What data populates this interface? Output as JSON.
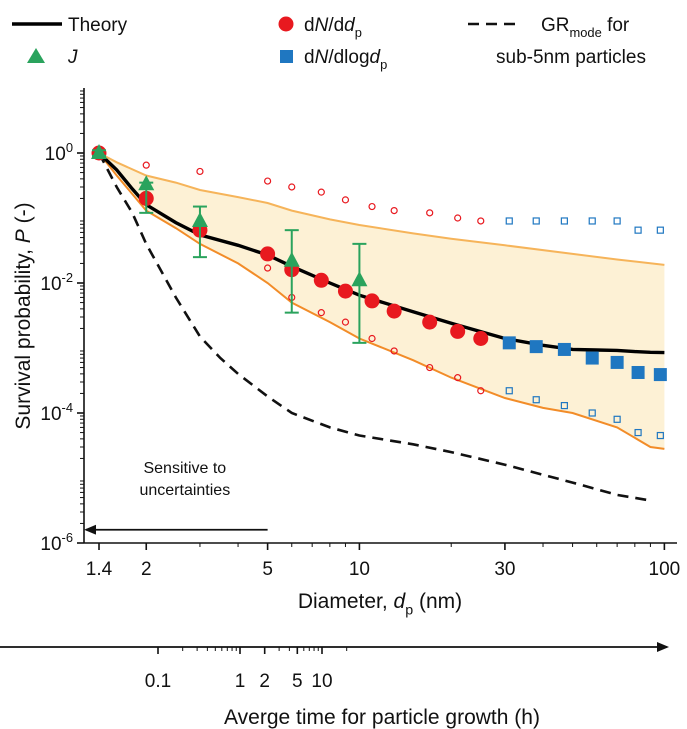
{
  "chart_data": {
    "type": "scatter",
    "x_scale": "log",
    "y_scale": "log",
    "xlim": [
      1.25,
      110
    ],
    "ylim": [
      1e-06,
      10
    ],
    "xlabel": {
      "prefix": "Diameter, ",
      "var": "d",
      "sub": "p",
      "suffix": " (nm)"
    },
    "ylabel": {
      "prefix": "Survival probability, ",
      "var": "P",
      "suffix": " (-)"
    },
    "x_ticks": [
      {
        "value": 1.4,
        "label": "1.4"
      },
      {
        "value": 2,
        "label": "2"
      },
      {
        "value": 5,
        "label": "5"
      },
      {
        "value": 10,
        "label": "10"
      },
      {
        "value": 30,
        "label": "30"
      },
      {
        "value": 100,
        "label": "100"
      }
    ],
    "y_ticks": [
      {
        "value": 1,
        "base": "10",
        "exp": "0"
      },
      {
        "value": 0.01,
        "base": "10",
        "exp": "-2"
      },
      {
        "value": 0.0001,
        "base": "10",
        "exp": "-4"
      },
      {
        "value": 1e-06,
        "base": "10",
        "exp": "-6"
      }
    ],
    "secondary_axis": {
      "label": "Averge time for particle growth (h)",
      "ticks": [
        {
          "value": 0.1,
          "label": "0.1"
        },
        {
          "value": 1,
          "label": "1"
        },
        {
          "value": 2,
          "label": "2"
        },
        {
          "value": 5,
          "label": "5"
        },
        {
          "value": 10,
          "label": "10"
        }
      ]
    },
    "legend": {
      "position": "top",
      "items": [
        {
          "key": "theory",
          "label": "Theory"
        },
        {
          "key": "dn_ddp",
          "label_parts": [
            "d",
            "N",
            "/d",
            "d",
            "p"
          ]
        },
        {
          "key": "gr_mode",
          "label_parts": [
            "GR",
            "mode",
            " for"
          ],
          "label_line2": "sub-5nm particles"
        },
        {
          "key": "j",
          "label": "J"
        },
        {
          "key": "dn_dlogdp",
          "label_parts": [
            "d",
            "N",
            "/dlog",
            "d",
            "p"
          ]
        }
      ]
    },
    "annotation": {
      "text_lines": [
        "Sensitive to",
        "uncertainties"
      ],
      "arrow_from_x": 5,
      "arrow_to_x": 1.27,
      "arrow_y": 1.6e-06
    },
    "colors": {
      "theory": "#000000",
      "dn_ddp": "#e8191f",
      "j": "#2aa35d",
      "dn_dlogdp": "#1f77c1",
      "band_fill": "#fdf1d5",
      "band_edge": "#f28c28",
      "band_edge_light": "#f6b45a"
    },
    "series": [
      {
        "name": "Theory",
        "key": "theory",
        "kind": "line",
        "x": [
          1.4,
          1.6,
          1.8,
          2,
          2.5,
          3,
          4,
          5,
          6,
          8,
          10,
          15,
          20,
          30,
          40,
          50,
          60,
          70,
          80,
          90,
          100
        ],
        "y": [
          1,
          0.55,
          0.28,
          0.16,
          0.085,
          0.055,
          0.038,
          0.027,
          0.018,
          0.01,
          0.0065,
          0.0036,
          0.0024,
          0.0014,
          0.0011,
          0.00095,
          0.00093,
          0.00092,
          0.00088,
          0.00086,
          0.00085
        ]
      },
      {
        "name": "GR mode for sub-5nm particles",
        "key": "gr_mode",
        "kind": "dashed",
        "x": [
          1.4,
          1.6,
          1.8,
          2,
          2.5,
          3,
          3.5,
          4,
          5,
          6,
          8,
          10,
          15,
          20,
          30,
          50,
          70,
          90
        ],
        "y": [
          1,
          0.3,
          0.12,
          0.04,
          0.006,
          0.0015,
          0.0007,
          0.0004,
          0.00018,
          0.0001,
          6e-05,
          4.5e-05,
          3.3e-05,
          2.5e-05,
          1.6e-05,
          8.5e-06,
          5.5e-06,
          4.5e-06
        ]
      },
      {
        "name": "Band upper",
        "key": "band_upper",
        "kind": "band_edge",
        "x": [
          1.4,
          1.6,
          2,
          2.5,
          3,
          4,
          5,
          6,
          8,
          10,
          15,
          20,
          30,
          50,
          70,
          100
        ],
        "y": [
          1,
          0.72,
          0.45,
          0.35,
          0.27,
          0.21,
          0.17,
          0.13,
          0.095,
          0.078,
          0.058,
          0.048,
          0.038,
          0.028,
          0.023,
          0.019
        ]
      },
      {
        "name": "Band lower",
        "key": "band_lower",
        "kind": "band_edge",
        "x": [
          1.4,
          1.6,
          2,
          2.5,
          3,
          4,
          5,
          6,
          8,
          10,
          15,
          20,
          30,
          40,
          50,
          70,
          90,
          100
        ],
        "y": [
          1,
          0.45,
          0.13,
          0.07,
          0.04,
          0.02,
          0.01,
          0.005,
          0.0025,
          0.0014,
          0.00065,
          0.00035,
          0.00017,
          0.00012,
          0.0001,
          6e-05,
          3e-05,
          2.8e-05
        ]
      },
      {
        "name": "dN/ddp",
        "key": "dn_ddp",
        "kind": "dots",
        "x": [
          1.4,
          2,
          3,
          5,
          6,
          7.5,
          9,
          11,
          13,
          17,
          21,
          25
        ],
        "y": [
          1,
          0.2,
          0.065,
          0.028,
          0.016,
          0.011,
          0.0075,
          0.0053,
          0.0037,
          0.0025,
          0.0018,
          0.0014
        ]
      },
      {
        "name": "dN/ddp open upper",
        "key": "dn_ddp_open_upper",
        "kind": "open_circles",
        "x": [
          2,
          3,
          5,
          6,
          7.5,
          9,
          11,
          13,
          17,
          21,
          25
        ],
        "y": [
          0.65,
          0.52,
          0.37,
          0.3,
          0.25,
          0.19,
          0.15,
          0.13,
          0.12,
          0.1,
          0.09
        ]
      },
      {
        "name": "dN/ddp open lower",
        "key": "dn_ddp_open_lower",
        "kind": "open_circles",
        "x": [
          2,
          3,
          5,
          6,
          7.5,
          9,
          11,
          13,
          17,
          21,
          25
        ],
        "y": [
          0.2,
          0.06,
          0.017,
          0.006,
          0.0035,
          0.0025,
          0.0014,
          0.0009,
          0.0005,
          0.00035,
          0.00022
        ]
      },
      {
        "name": "dN/dlogdp",
        "key": "dn_dlogdp",
        "kind": "squares",
        "x": [
          31,
          38,
          47,
          58,
          70,
          82,
          97
        ],
        "y": [
          0.0012,
          0.00105,
          0.00095,
          0.0007,
          0.0006,
          0.00042,
          0.00039
        ]
      },
      {
        "name": "dN/dlogdp open upper",
        "key": "dn_dlogdp_open_upper",
        "kind": "open_squares",
        "x": [
          31,
          38,
          47,
          58,
          70,
          82,
          97
        ],
        "y": [
          0.09,
          0.09,
          0.09,
          0.09,
          0.09,
          0.065,
          0.065
        ]
      },
      {
        "name": "dN/dlogdp open lower",
        "key": "dn_dlogdp_open_lower",
        "kind": "open_squares",
        "x": [
          31,
          38,
          47,
          58,
          70,
          82,
          97
        ],
        "y": [
          0.00022,
          0.00016,
          0.00013,
          0.0001,
          8e-05,
          5e-05,
          4.5e-05
        ]
      },
      {
        "name": "J",
        "key": "j",
        "kind": "triangles",
        "x": [
          1.4,
          2,
          3,
          6,
          10
        ],
        "y": [
          1,
          0.33,
          0.09,
          0.022,
          0.011
        ],
        "y_low": [
          0.9,
          0.12,
          0.025,
          0.0035,
          0.0012
        ],
        "y_high": [
          1.1,
          0.35,
          0.15,
          0.065,
          0.04
        ]
      }
    ]
  }
}
